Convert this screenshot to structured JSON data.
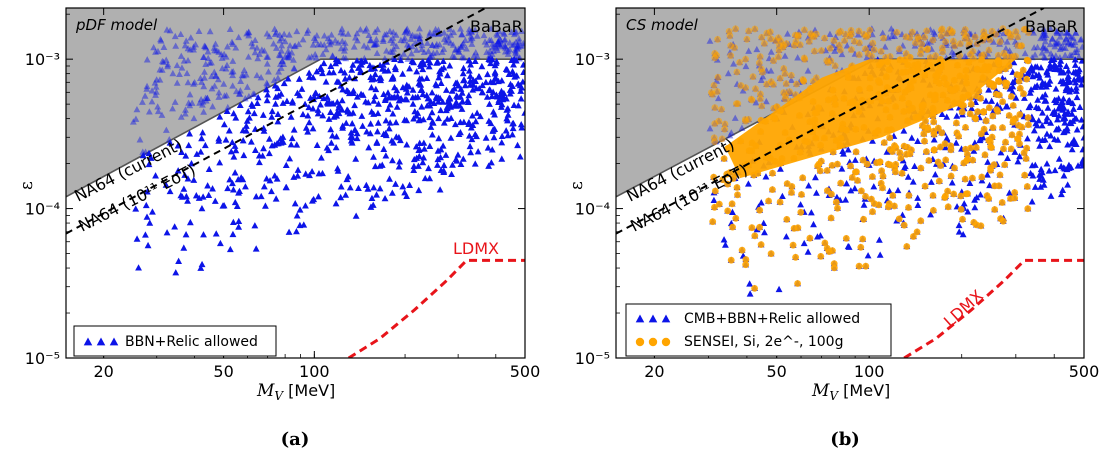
{
  "colors": {
    "excluded_region": "#b0b0b0",
    "excluded_edge": "#555555",
    "allowed_blue": "#0c14e8",
    "sensei_orange": "#ffa500",
    "ldmx_red": "#e8141a",
    "na64_projection": "#000000"
  },
  "chart_data": [
    {
      "type": "scatter",
      "caption": "(a)",
      "model_label": "pDF model",
      "xlabel": "M_V [MeV]",
      "ylabel": "ε",
      "xscale": "log",
      "yscale": "log",
      "xlim": [
        15,
        500
      ],
      "ylim": [
        1e-05,
        0.0022
      ],
      "x_ticks": [
        20,
        50,
        100,
        500
      ],
      "x_tick_labels": [
        "20",
        "50",
        "100",
        "500"
      ],
      "y_ticks": [
        1e-05,
        0.0001,
        0.001
      ],
      "y_tick_labels": [
        "10⁻⁵",
        "10⁻⁴",
        "10⁻³"
      ],
      "region_labels": {
        "babar": "BaBaR",
        "na64_current": "NA64 (current)",
        "na64_future": "NA64 (10¹¹ EoT)",
        "ldmx": "LDMX"
      },
      "legend": {
        "position": "lower-left",
        "entries": [
          "BBN+Relic allowed"
        ]
      },
      "curves": {
        "na64_current": {
          "x": [
            15,
            105
          ],
          "y": [
            0.00012,
            0.001
          ]
        },
        "na64_future": {
          "x": [
            15,
            370
          ],
          "y": [
            6.8e-05,
            0.0022
          ]
        },
        "babar_floor": {
          "x": [
            105,
            500
          ],
          "y": [
            0.001,
            0.001
          ]
        },
        "ldmx": {
          "x": [
            130,
            165,
            215,
            275,
            320,
            500
          ],
          "y": [
            1e-05,
            1.35e-05,
            2.1e-05,
            3.3e-05,
            4.5e-05,
            4.5e-05
          ]
        }
      },
      "series": [
        {
          "name": "BBN+Relic allowed",
          "marker": "triangle",
          "density_x_range": [
            25,
            500
          ],
          "density_y_range": [
            2.5e-05,
            0.0016
          ]
        }
      ]
    },
    {
      "type": "scatter",
      "caption": "(b)",
      "model_label": "CS model",
      "xlabel": "M_V [MeV]",
      "ylabel": "ε",
      "xscale": "log",
      "yscale": "log",
      "xlim": [
        15,
        500
      ],
      "ylim": [
        1e-05,
        0.0022
      ],
      "x_ticks": [
        20,
        50,
        100,
        500
      ],
      "x_tick_labels": [
        "20",
        "50",
        "100",
        "500"
      ],
      "y_ticks": [
        1e-05,
        0.0001,
        0.001
      ],
      "y_tick_labels": [
        "10⁻⁵",
        "10⁻⁴",
        "10⁻³"
      ],
      "region_labels": {
        "babar": "BaBaR",
        "na64_current": "NA64 (current)",
        "na64_future": "NA64 (10¹¹ EoT)",
        "ldmx": "LDMX"
      },
      "legend": {
        "position": "lower-left",
        "entries": [
          "CMB+BBN+Relic allowed",
          "SENSEI, Si, 2e^-, 100g"
        ]
      },
      "curves": {
        "na64_current": {
          "x": [
            15,
            105
          ],
          "y": [
            0.00012,
            0.001
          ]
        },
        "na64_future": {
          "x": [
            15,
            370
          ],
          "y": [
            6.8e-05,
            0.0022
          ]
        },
        "babar_floor": {
          "x": [
            105,
            500
          ],
          "y": [
            0.001,
            0.001
          ]
        },
        "ldmx": {
          "x": [
            130,
            165,
            215,
            275,
            320,
            500
          ],
          "y": [
            1e-05,
            1.35e-05,
            2.1e-05,
            3.3e-05,
            4.5e-05,
            4.5e-05
          ]
        }
      },
      "series": [
        {
          "name": "CMB+BBN+Relic allowed",
          "marker": "triangle",
          "density_x_range": [
            30,
            500
          ],
          "density_y_range": [
            1.3e-05,
            0.0016
          ]
        },
        {
          "name": "SENSEI, Si, 2e^-, 100g",
          "marker": "circle",
          "density_x_range": [
            30,
            330
          ],
          "density_y_range": [
            2.5e-05,
            0.0016
          ]
        }
      ]
    }
  ]
}
